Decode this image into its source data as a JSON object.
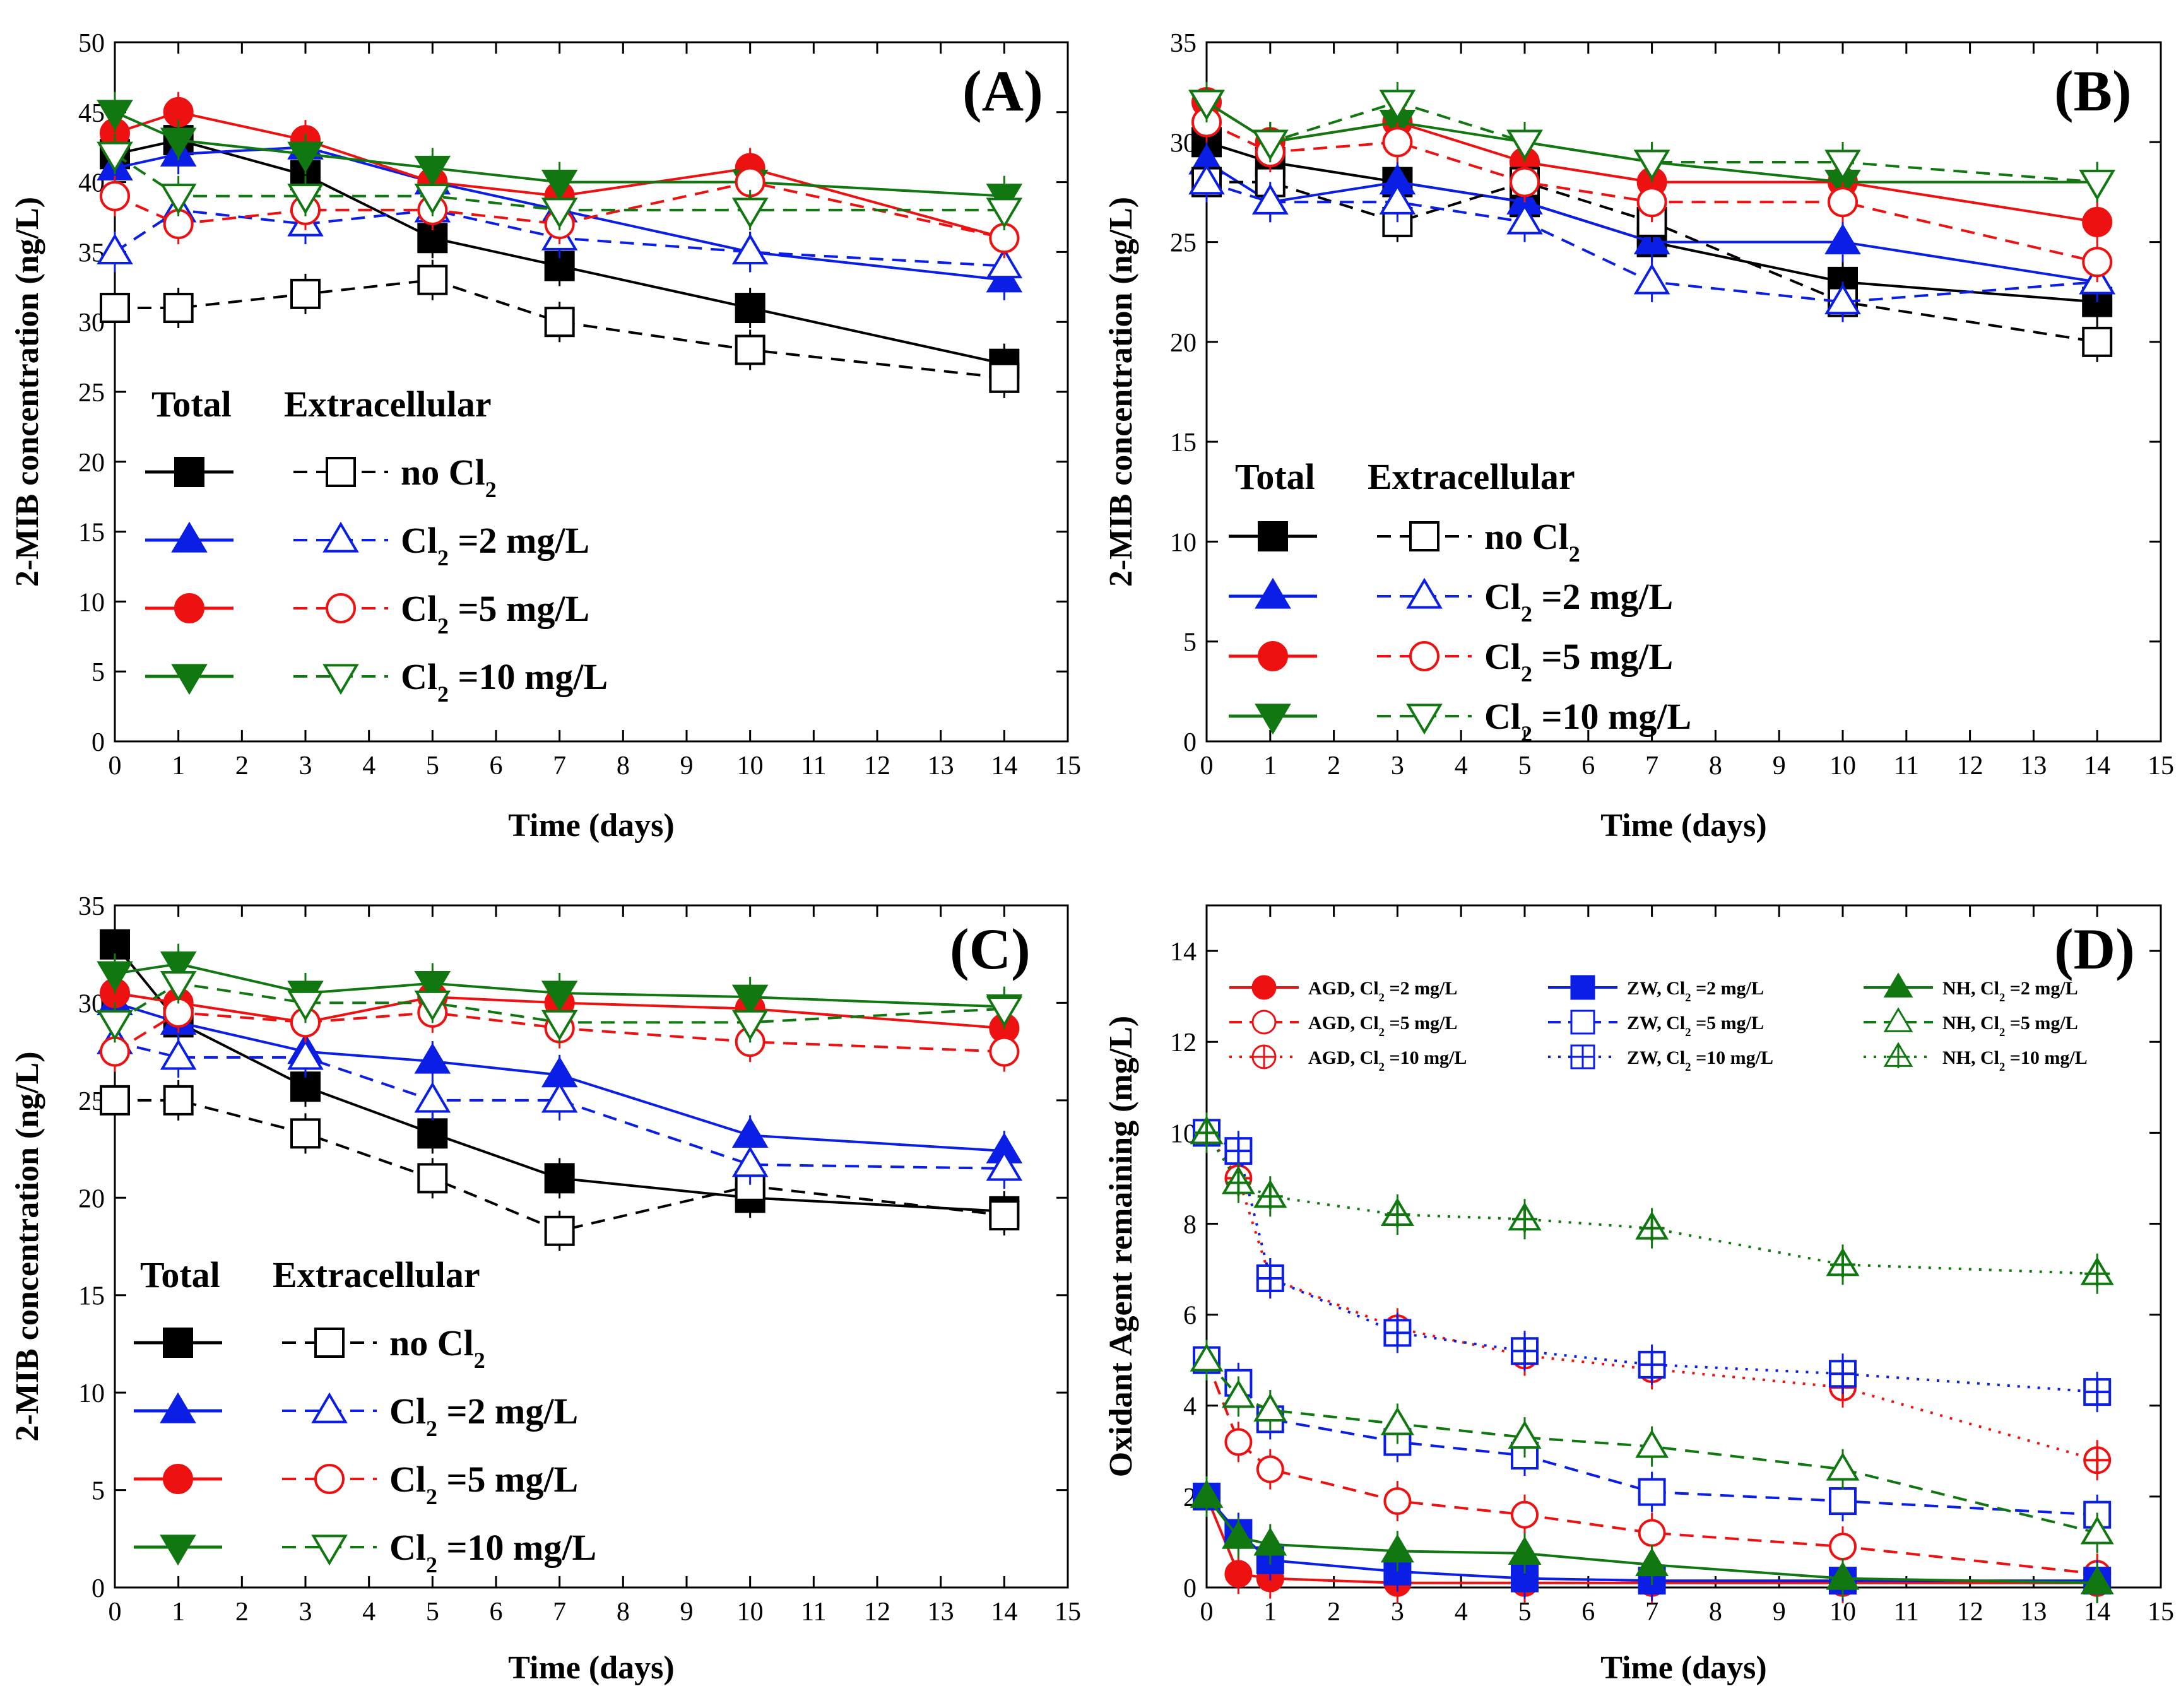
{
  "chart_data": [
    {
      "type": "line",
      "panel": "(A)",
      "xlabel": "Time (days)",
      "ylabel": "2-MIB concentration (ng/L)",
      "xlim": [
        0,
        15
      ],
      "ylim": [
        0,
        50
      ],
      "xticks": [
        0,
        1,
        2,
        3,
        4,
        5,
        6,
        7,
        8,
        9,
        10,
        11,
        12,
        13,
        14,
        15
      ],
      "yticks": [
        0,
        5,
        10,
        15,
        20,
        25,
        30,
        35,
        40,
        45,
        50
      ],
      "x": [
        0,
        1,
        3,
        5,
        7,
        10,
        14
      ],
      "legend": {
        "head_total": "Total",
        "head_extra": "Extracellular",
        "position": "lower-left"
      },
      "series": [
        {
          "name": "no Cl2",
          "label_main": "no Cl",
          "label_sub": "2",
          "label_tail": "",
          "group": "Total",
          "color": "#000000",
          "marker": "square",
          "filled": true,
          "dash": "solid",
          "values": [
            42,
            43,
            40.5,
            36,
            34,
            31,
            27
          ]
        },
        {
          "name": "Cl2 =2 mg/L",
          "label_main": "Cl",
          "label_sub": "2",
          "label_tail": " =2 mg/L",
          "group": "Total",
          "color": "#0a1ee6",
          "marker": "triangle",
          "filled": true,
          "dash": "solid",
          "values": [
            41,
            42,
            42.5,
            40,
            38,
            35,
            33
          ]
        },
        {
          "name": "Cl2 =5 mg/L",
          "label_main": "Cl",
          "label_sub": "2",
          "label_tail": " =5 mg/L",
          "group": "Total",
          "color": "#ee1111",
          "marker": "circle",
          "filled": true,
          "dash": "solid",
          "values": [
            43.5,
            45,
            43,
            40,
            39,
            41,
            36
          ]
        },
        {
          "name": "Cl2 =10 mg/L",
          "label_main": "Cl",
          "label_sub": "2",
          "label_tail": " =10 mg/L",
          "group": "Total",
          "color": "#117711",
          "marker": "triangle-down",
          "filled": true,
          "dash": "solid",
          "values": [
            45,
            43,
            42,
            41,
            40,
            40,
            39
          ]
        },
        {
          "name": "no Cl2 (extracellular)",
          "label_main": "no Cl",
          "label_sub": "2",
          "label_tail": "",
          "group": "Extracellular",
          "color": "#000000",
          "marker": "square",
          "filled": false,
          "dash": "dashed",
          "values": [
            31,
            31,
            32,
            33,
            30,
            28,
            26
          ]
        },
        {
          "name": "Cl2 =2 mg/L (extracellular)",
          "label_main": "Cl",
          "label_sub": "2",
          "label_tail": " =2 mg/L",
          "group": "Extracellular",
          "color": "#0a1ee6",
          "marker": "triangle",
          "filled": false,
          "dash": "dashed",
          "values": [
            35,
            38,
            37,
            38,
            36,
            35,
            34
          ]
        },
        {
          "name": "Cl2 =5 mg/L (extracellular)",
          "label_main": "Cl",
          "label_sub": "2",
          "label_tail": " =5 mg/L",
          "group": "Extracellular",
          "color": "#ee1111",
          "marker": "circle",
          "filled": false,
          "dash": "dashed",
          "values": [
            39,
            37,
            38,
            38,
            37,
            40,
            36
          ]
        },
        {
          "name": "Cl2 =10 mg/L (extracellular)",
          "label_main": "Cl",
          "label_sub": "2",
          "label_tail": " =10 mg/L",
          "group": "Extracellular",
          "color": "#117711",
          "marker": "triangle-down",
          "filled": false,
          "dash": "dashed",
          "values": [
            42,
            39,
            39,
            39,
            38,
            38,
            38
          ]
        }
      ]
    },
    {
      "type": "line",
      "panel": "(B)",
      "xlabel": "Time (days)",
      "ylabel": "2-MIB concentration (ng/L)",
      "xlim": [
        0,
        15
      ],
      "ylim": [
        0,
        35
      ],
      "xticks": [
        0,
        1,
        2,
        3,
        4,
        5,
        6,
        7,
        8,
        9,
        10,
        11,
        12,
        13,
        14,
        15
      ],
      "yticks": [
        0,
        5,
        10,
        15,
        20,
        25,
        30,
        35
      ],
      "x": [
        0,
        1,
        3,
        5,
        7,
        10,
        14
      ],
      "legend": {
        "head_total": "Total",
        "head_extra": "Extracellular",
        "position": "lower-left"
      },
      "series": [
        {
          "name": "no Cl2",
          "label_main": "no Cl",
          "label_sub": "2",
          "label_tail": "",
          "group": "Total",
          "color": "#000000",
          "marker": "square",
          "filled": true,
          "dash": "solid",
          "values": [
            30,
            29,
            28,
            27,
            25,
            23,
            22
          ]
        },
        {
          "name": "Cl2 =2 mg/L",
          "label_main": "Cl",
          "label_sub": "2",
          "label_tail": " =2 mg/L",
          "group": "Total",
          "color": "#0a1ee6",
          "marker": "triangle",
          "filled": true,
          "dash": "solid",
          "values": [
            29,
            27,
            28,
            27,
            25,
            25,
            23
          ]
        },
        {
          "name": "Cl2 =5 mg/L",
          "label_main": "Cl",
          "label_sub": "2",
          "label_tail": " =5 mg/L",
          "group": "Total",
          "color": "#ee1111",
          "marker": "circle",
          "filled": true,
          "dash": "solid",
          "values": [
            32,
            30,
            31,
            29,
            28,
            28,
            26
          ]
        },
        {
          "name": "Cl2 =10 mg/L",
          "label_main": "Cl",
          "label_sub": "2",
          "label_tail": " =10 mg/L",
          "group": "Total",
          "color": "#117711",
          "marker": "triangle-down",
          "filled": true,
          "dash": "solid",
          "values": [
            32,
            30,
            31,
            30,
            29,
            28,
            28
          ]
        },
        {
          "name": "no Cl2 (extracellular)",
          "label_main": "no Cl",
          "label_sub": "2",
          "label_tail": "",
          "group": "Extracellular",
          "color": "#000000",
          "marker": "square",
          "filled": false,
          "dash": "dashed",
          "values": [
            28,
            28,
            26,
            28,
            26,
            22,
            20
          ]
        },
        {
          "name": "Cl2 =2 mg/L (extracellular)",
          "label_main": "Cl",
          "label_sub": "2",
          "label_tail": " =2 mg/L",
          "group": "Extracellular",
          "color": "#0a1ee6",
          "marker": "triangle",
          "filled": false,
          "dash": "dashed",
          "values": [
            28,
            27,
            27,
            26,
            23,
            22,
            23
          ]
        },
        {
          "name": "Cl2 =5 mg/L (extracellular)",
          "label_main": "Cl",
          "label_sub": "2",
          "label_tail": " =5 mg/L",
          "group": "Extracellular",
          "color": "#ee1111",
          "marker": "circle",
          "filled": false,
          "dash": "dashed",
          "values": [
            31,
            29.5,
            30,
            28,
            27,
            27,
            24
          ]
        },
        {
          "name": "Cl2 =10 mg/L (extracellular)",
          "label_main": "Cl",
          "label_sub": "2",
          "label_tail": " =10 mg/L",
          "group": "Extracellular",
          "color": "#117711",
          "marker": "triangle-down",
          "filled": false,
          "dash": "dashed",
          "values": [
            32,
            30,
            32,
            30,
            29,
            29,
            28
          ]
        }
      ]
    },
    {
      "type": "line",
      "panel": "(C)",
      "xlabel": "Time (days)",
      "ylabel": "2-MIB concentration (ng/L)",
      "xlim": [
        0,
        15
      ],
      "ylim": [
        0,
        35
      ],
      "xticks": [
        0,
        1,
        2,
        3,
        4,
        5,
        6,
        7,
        8,
        9,
        10,
        11,
        12,
        13,
        14,
        15
      ],
      "yticks": [
        0,
        5,
        10,
        15,
        20,
        25,
        30,
        35
      ],
      "x": [
        0,
        1,
        3,
        5,
        7,
        10,
        14
      ],
      "legend": {
        "head_total": "Total",
        "head_extra": "Extracellular",
        "position": "lower-left"
      },
      "series": [
        {
          "name": "no Cl2",
          "label_main": "no Cl",
          "label_sub": "2",
          "label_tail": "",
          "group": "Total",
          "color": "#000000",
          "marker": "square",
          "filled": true,
          "dash": "solid",
          "values": [
            33,
            29,
            25.7,
            23.3,
            21,
            20,
            19.3
          ]
        },
        {
          "name": "Cl2 =2 mg/L",
          "label_main": "Cl",
          "label_sub": "2",
          "label_tail": " =2 mg/L",
          "group": "Total",
          "color": "#0a1ee6",
          "marker": "triangle",
          "filled": true,
          "dash": "solid",
          "values": [
            30,
            29,
            27.5,
            27,
            26.3,
            23.2,
            22.4
          ]
        },
        {
          "name": "Cl2 =5 mg/L",
          "label_main": "Cl",
          "label_sub": "2",
          "label_tail": " =5 mg/L",
          "group": "Total",
          "color": "#ee1111",
          "marker": "circle",
          "filled": true,
          "dash": "solid",
          "values": [
            30.5,
            30,
            29,
            30.3,
            30,
            29.7,
            28.7
          ]
        },
        {
          "name": "Cl2 =10 mg/L",
          "label_main": "Cl",
          "label_sub": "2",
          "label_tail": " =10 mg/L",
          "group": "Total",
          "color": "#117711",
          "marker": "triangle-down",
          "filled": true,
          "dash": "solid",
          "values": [
            31.5,
            32,
            30.5,
            31,
            30.5,
            30.3,
            29.8
          ]
        },
        {
          "name": "no Cl2 (extracellular)",
          "label_main": "no Cl",
          "label_sub": "2",
          "label_tail": "",
          "group": "Extracellular",
          "color": "#000000",
          "marker": "square",
          "filled": false,
          "dash": "dashed",
          "values": [
            25,
            25,
            23.3,
            21,
            18.3,
            20.6,
            19.1
          ]
        },
        {
          "name": "Cl2 =2 mg/L (extracellular)",
          "label_main": "Cl",
          "label_sub": "2",
          "label_tail": " =2 mg/L",
          "group": "Extracellular",
          "color": "#0a1ee6",
          "marker": "triangle",
          "filled": false,
          "dash": "dashed",
          "values": [
            28,
            27.2,
            27.2,
            25,
            25,
            21.7,
            21.5
          ]
        },
        {
          "name": "Cl2 =5 mg/L (extracellular)",
          "label_main": "Cl",
          "label_sub": "2",
          "label_tail": " =5 mg/L",
          "group": "Extracellular",
          "color": "#ee1111",
          "marker": "circle",
          "filled": false,
          "dash": "dashed",
          "values": [
            27.5,
            29.5,
            29,
            29.5,
            28.7,
            28,
            27.5
          ]
        },
        {
          "name": "Cl2 =10 mg/L (extracellular)",
          "label_main": "Cl",
          "label_sub": "2",
          "label_tail": " =10 mg/L",
          "group": "Extracellular",
          "color": "#117711",
          "marker": "triangle-down",
          "filled": false,
          "dash": "dashed",
          "values": [
            29,
            31,
            30,
            30,
            29,
            29,
            29.7
          ]
        }
      ]
    },
    {
      "type": "line",
      "panel": "(D)",
      "xlabel": "Time (days)",
      "ylabel": "Oxidant Agent remaining (mg/L)",
      "xlim": [
        0,
        15
      ],
      "ylim": [
        0,
        15
      ],
      "xticks": [
        0,
        1,
        2,
        3,
        4,
        5,
        6,
        7,
        8,
        9,
        10,
        11,
        12,
        13,
        14,
        15
      ],
      "yticks": [
        0,
        2,
        4,
        6,
        8,
        10,
        12,
        14
      ],
      "x": [
        0,
        0.5,
        1,
        3,
        5,
        7,
        10,
        14
      ],
      "legend": {
        "position": "top"
      },
      "series": [
        {
          "name": "AGD, Cl2 =2 mg/L",
          "label_main": "AGD, Cl",
          "label_sub": "2",
          "label_tail": " =2 mg/L",
          "color": "#ee1111",
          "marker": "circle",
          "filled": true,
          "dash": "solid",
          "values": [
            2,
            0.3,
            0.2,
            0.1,
            0.1,
            0.1,
            0.1,
            0.1
          ]
        },
        {
          "name": "AGD, Cl2 =5 mg/L",
          "label_main": "AGD, Cl",
          "label_sub": "2",
          "label_tail": " =5 mg/L",
          "color": "#ee1111",
          "marker": "circle",
          "filled": false,
          "dash": "dashed",
          "values": [
            5,
            3.2,
            2.6,
            1.9,
            1.6,
            1.2,
            0.9,
            0.3
          ]
        },
        {
          "name": "AGD, Cl2 =10 mg/L",
          "label_main": "AGD, Cl",
          "label_sub": "2",
          "label_tail": " =10 mg/L",
          "color": "#ee1111",
          "marker": "circle-plus",
          "filled": false,
          "dash": "dotted",
          "values": [
            10,
            9,
            6.8,
            5.7,
            5.1,
            4.8,
            4.4,
            2.8
          ]
        },
        {
          "name": "ZW, Cl2 =2 mg/L",
          "label_main": "ZW, Cl",
          "label_sub": "2",
          "label_tail": " =2 mg/L",
          "color": "#0a1ee6",
          "marker": "square",
          "filled": true,
          "dash": "solid",
          "values": [
            2,
            1.2,
            0.6,
            0.35,
            0.2,
            0.15,
            0.15,
            0.15
          ]
        },
        {
          "name": "ZW, Cl2 =5 mg/L",
          "label_main": "ZW, Cl",
          "label_sub": "2",
          "label_tail": " =5 mg/L",
          "color": "#0a1ee6",
          "marker": "square",
          "filled": false,
          "dash": "dashed",
          "values": [
            5,
            4.5,
            3.7,
            3.2,
            2.9,
            2.1,
            1.9,
            1.6
          ]
        },
        {
          "name": "ZW, Cl2 =10 mg/L",
          "label_main": "ZW, Cl",
          "label_sub": "2",
          "label_tail": " =10 mg/L",
          "color": "#0a1ee6",
          "marker": "square-plus",
          "filled": false,
          "dash": "dotted",
          "values": [
            10,
            9.6,
            6.8,
            5.6,
            5.2,
            4.9,
            4.7,
            4.3
          ]
        },
        {
          "name": "NH, Cl2 =2 mg/L",
          "label_main": "NH, Cl",
          "label_sub": "2",
          "label_tail": " =2 mg/L",
          "color": "#117711",
          "marker": "triangle",
          "filled": true,
          "dash": "solid",
          "values": [
            2,
            1.1,
            0.95,
            0.8,
            0.75,
            0.5,
            0.2,
            0.1
          ]
        },
        {
          "name": "NH, Cl2 =5 mg/L",
          "label_main": "NH, Cl",
          "label_sub": "2",
          "label_tail": " =5 mg/L",
          "color": "#117711",
          "marker": "triangle",
          "filled": false,
          "dash": "dashed",
          "values": [
            5,
            4.2,
            3.9,
            3.6,
            3.3,
            3.1,
            2.6,
            1.2
          ]
        },
        {
          "name": "NH, Cl2 =10 mg/L",
          "label_main": "NH, Cl",
          "label_sub": "2",
          "label_tail": " =10 mg/L",
          "color": "#117711",
          "marker": "triangle-plus",
          "filled": false,
          "dash": "dotted",
          "values": [
            10,
            8.9,
            8.6,
            8.2,
            8.1,
            7.9,
            7.1,
            6.9
          ]
        }
      ]
    }
  ]
}
